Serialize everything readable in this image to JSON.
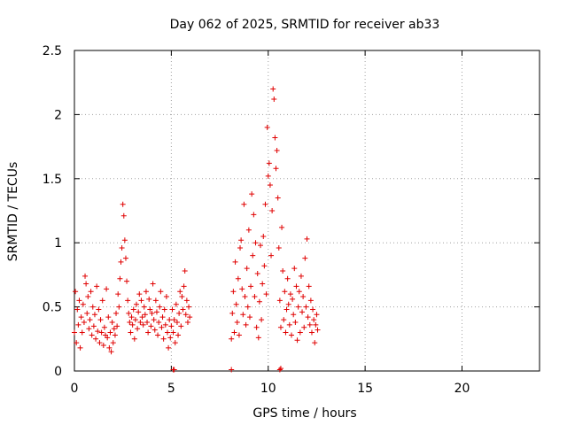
{
  "chart_data": {
    "type": "scatter",
    "title": "Day 062 of 2025, SRMTID for receiver ab33",
    "xlabel": "GPS time / hours",
    "ylabel": "SRMTID / TECUs",
    "xlim": [
      0,
      24
    ],
    "ylim": [
      0,
      2.5
    ],
    "xticks": [
      0,
      5,
      10,
      15,
      20
    ],
    "xtick_labels": [
      "0",
      "5",
      "10",
      "15",
      "20"
    ],
    "yticks": [
      0,
      0.5,
      1,
      1.5,
      2,
      2.5
    ],
    "ytick_labels": [
      "0",
      "0.5",
      "1",
      "1.5",
      "2",
      "2.5"
    ],
    "grid": true,
    "marker": "+",
    "color": "#e00000",
    "series": [
      {
        "name": "ab33",
        "points": [
          [
            0.0,
            0.3
          ],
          [
            0.05,
            0.62
          ],
          [
            0.1,
            0.22
          ],
          [
            0.15,
            0.48
          ],
          [
            0.2,
            0.36
          ],
          [
            0.25,
            0.55
          ],
          [
            0.3,
            0.18
          ],
          [
            0.35,
            0.42
          ],
          [
            0.4,
            0.3
          ],
          [
            0.45,
            0.52
          ],
          [
            0.5,
            0.38
          ],
          [
            0.55,
            0.74
          ],
          [
            0.6,
            0.68
          ],
          [
            0.65,
            0.45
          ],
          [
            0.7,
            0.58
          ],
          [
            0.75,
            0.33
          ],
          [
            0.8,
            0.4
          ],
          [
            0.85,
            0.62
          ],
          [
            0.9,
            0.28
          ],
          [
            0.95,
            0.5
          ],
          [
            1.0,
            0.35
          ],
          [
            1.05,
            0.44
          ],
          [
            1.1,
            0.25
          ],
          [
            1.15,
            0.66
          ],
          [
            1.2,
            0.31
          ],
          [
            1.25,
            0.48
          ],
          [
            1.3,
            0.22
          ],
          [
            1.35,
            0.4
          ],
          [
            1.4,
            0.3
          ],
          [
            1.45,
            0.55
          ],
          [
            1.5,
            0.2
          ],
          [
            1.55,
            0.34
          ],
          [
            1.6,
            0.28
          ],
          [
            1.65,
            0.64
          ],
          [
            1.7,
            0.26
          ],
          [
            1.75,
            0.42
          ],
          [
            1.8,
            0.18
          ],
          [
            1.85,
            0.3
          ],
          [
            1.9,
            0.15
          ],
          [
            1.95,
            0.38
          ],
          [
            2.0,
            0.22
          ],
          [
            2.05,
            0.33
          ],
          [
            2.1,
            0.28
          ],
          [
            2.15,
            0.45
          ],
          [
            2.2,
            0.35
          ],
          [
            2.25,
            0.6
          ],
          [
            2.3,
            0.5
          ],
          [
            2.35,
            0.72
          ],
          [
            2.4,
            0.85
          ],
          [
            2.45,
            0.96
          ],
          [
            2.5,
            1.3
          ],
          [
            2.55,
            1.21
          ],
          [
            2.6,
            1.02
          ],
          [
            2.65,
            0.88
          ],
          [
            2.7,
            0.7
          ],
          [
            2.75,
            0.55
          ],
          [
            2.8,
            0.45
          ],
          [
            2.85,
            0.38
          ],
          [
            2.9,
            0.3
          ],
          [
            2.95,
            0.42
          ],
          [
            3.0,
            0.36
          ],
          [
            3.05,
            0.48
          ],
          [
            3.1,
            0.25
          ],
          [
            3.15,
            0.4
          ],
          [
            3.2,
            0.52
          ],
          [
            3.25,
            0.33
          ],
          [
            3.3,
            0.46
          ],
          [
            3.35,
            0.6
          ],
          [
            3.4,
            0.38
          ],
          [
            3.45,
            0.55
          ],
          [
            3.5,
            0.42
          ],
          [
            3.55,
            0.36
          ],
          [
            3.6,
            0.5
          ],
          [
            3.65,
            0.44
          ],
          [
            3.7,
            0.62
          ],
          [
            3.75,
            0.38
          ],
          [
            3.8,
            0.3
          ],
          [
            3.85,
            0.56
          ],
          [
            3.9,
            0.48
          ],
          [
            3.95,
            0.35
          ],
          [
            4.0,
            0.45
          ],
          [
            4.05,
            0.68
          ],
          [
            4.1,
            0.4
          ],
          [
            4.15,
            0.32
          ],
          [
            4.2,
            0.55
          ],
          [
            4.25,
            0.46
          ],
          [
            4.3,
            0.28
          ],
          [
            4.35,
            0.38
          ],
          [
            4.4,
            0.5
          ],
          [
            4.45,
            0.62
          ],
          [
            4.5,
            0.34
          ],
          [
            4.55,
            0.42
          ],
          [
            4.6,
            0.25
          ],
          [
            4.65,
            0.48
          ],
          [
            4.7,
            0.36
          ],
          [
            4.75,
            0.58
          ],
          [
            4.8,
            0.3
          ],
          [
            4.85,
            0.18
          ],
          [
            4.9,
            0.4
          ],
          [
            4.95,
            0.26
          ],
          [
            5.0,
            0.35
          ],
          [
            5.05,
            0.48
          ],
          [
            5.1,
            0.3
          ],
          [
            5.15,
            0.4
          ],
          [
            5.2,
            0.22
          ],
          [
            5.25,
            0.52
          ],
          [
            5.3,
            0.38
          ],
          [
            5.35,
            0.28
          ],
          [
            5.4,
            0.45
          ],
          [
            5.45,
            0.62
          ],
          [
            5.5,
            0.35
          ],
          [
            5.55,
            0.58
          ],
          [
            5.6,
            0.48
          ],
          [
            5.65,
            0.66
          ],
          [
            5.7,
            0.78
          ],
          [
            5.75,
            0.44
          ],
          [
            5.8,
            0.55
          ],
          [
            5.85,
            0.38
          ],
          [
            5.9,
            0.5
          ],
          [
            5.95,
            0.42
          ],
          [
            5.1,
            0.01
          ],
          [
            5.15,
            0.01
          ],
          [
            8.1,
            0.01
          ],
          [
            8.1,
            0.25
          ],
          [
            8.15,
            0.45
          ],
          [
            8.2,
            0.62
          ],
          [
            8.25,
            0.3
          ],
          [
            8.3,
            0.85
          ],
          [
            8.35,
            0.52
          ],
          [
            8.4,
            0.38
          ],
          [
            8.45,
            0.72
          ],
          [
            8.5,
            0.28
          ],
          [
            8.55,
            0.96
          ],
          [
            8.6,
            1.02
          ],
          [
            8.65,
            0.64
          ],
          [
            8.7,
            0.44
          ],
          [
            8.75,
            1.3
          ],
          [
            8.8,
            0.58
          ],
          [
            8.85,
            0.36
          ],
          [
            8.9,
            0.8
          ],
          [
            8.95,
            0.5
          ],
          [
            9.0,
            1.1
          ],
          [
            9.05,
            0.42
          ],
          [
            9.1,
            0.66
          ],
          [
            9.15,
            1.38
          ],
          [
            9.2,
            0.9
          ],
          [
            9.25,
            1.22
          ],
          [
            9.3,
            0.58
          ],
          [
            9.35,
            1.0
          ],
          [
            9.4,
            0.34
          ],
          [
            9.45,
            0.76
          ],
          [
            9.5,
            0.26
          ],
          [
            9.55,
            0.54
          ],
          [
            9.6,
            0.98
          ],
          [
            9.65,
            0.4
          ],
          [
            9.7,
            0.68
          ],
          [
            9.75,
            1.05
          ],
          [
            9.8,
            0.82
          ],
          [
            9.85,
            1.3
          ],
          [
            9.9,
            0.6
          ],
          [
            9.95,
            1.9
          ],
          [
            10.0,
            1.52
          ],
          [
            10.05,
            1.62
          ],
          [
            10.1,
            1.45
          ],
          [
            10.15,
            0.9
          ],
          [
            10.2,
            1.25
          ],
          [
            10.25,
            2.2
          ],
          [
            10.3,
            2.12
          ],
          [
            10.35,
            1.82
          ],
          [
            10.4,
            1.58
          ],
          [
            10.45,
            1.72
          ],
          [
            10.5,
            1.35
          ],
          [
            10.55,
            0.96
          ],
          [
            10.6,
            0.55
          ],
          [
            10.65,
            0.34
          ],
          [
            10.7,
            1.12
          ],
          [
            10.75,
            0.78
          ],
          [
            10.8,
            0.4
          ],
          [
            10.85,
            0.62
          ],
          [
            10.9,
            0.3
          ],
          [
            10.95,
            0.48
          ],
          [
            11.0,
            0.72
          ],
          [
            11.05,
            0.52
          ],
          [
            11.1,
            0.36
          ],
          [
            11.15,
            0.6
          ],
          [
            11.2,
            0.28
          ],
          [
            11.25,
            0.56
          ],
          [
            11.3,
            0.44
          ],
          [
            11.35,
            0.8
          ],
          [
            11.4,
            0.38
          ],
          [
            11.45,
            0.66
          ],
          [
            11.5,
            0.24
          ],
          [
            11.55,
            0.5
          ],
          [
            11.6,
            0.62
          ],
          [
            11.65,
            0.3
          ],
          [
            11.7,
            0.74
          ],
          [
            11.75,
            0.46
          ],
          [
            11.8,
            0.58
          ],
          [
            11.85,
            0.34
          ],
          [
            11.9,
            0.88
          ],
          [
            11.95,
            0.5
          ],
          [
            12.0,
            1.03
          ],
          [
            12.05,
            0.42
          ],
          [
            12.1,
            0.66
          ],
          [
            12.15,
            0.36
          ],
          [
            12.2,
            0.55
          ],
          [
            12.25,
            0.3
          ],
          [
            12.3,
            0.48
          ],
          [
            12.35,
            0.4
          ],
          [
            12.4,
            0.22
          ],
          [
            12.45,
            0.36
          ],
          [
            12.5,
            0.44
          ],
          [
            12.55,
            0.32
          ],
          [
            10.6,
            0.01
          ],
          [
            10.65,
            0.02
          ]
        ]
      }
    ]
  }
}
